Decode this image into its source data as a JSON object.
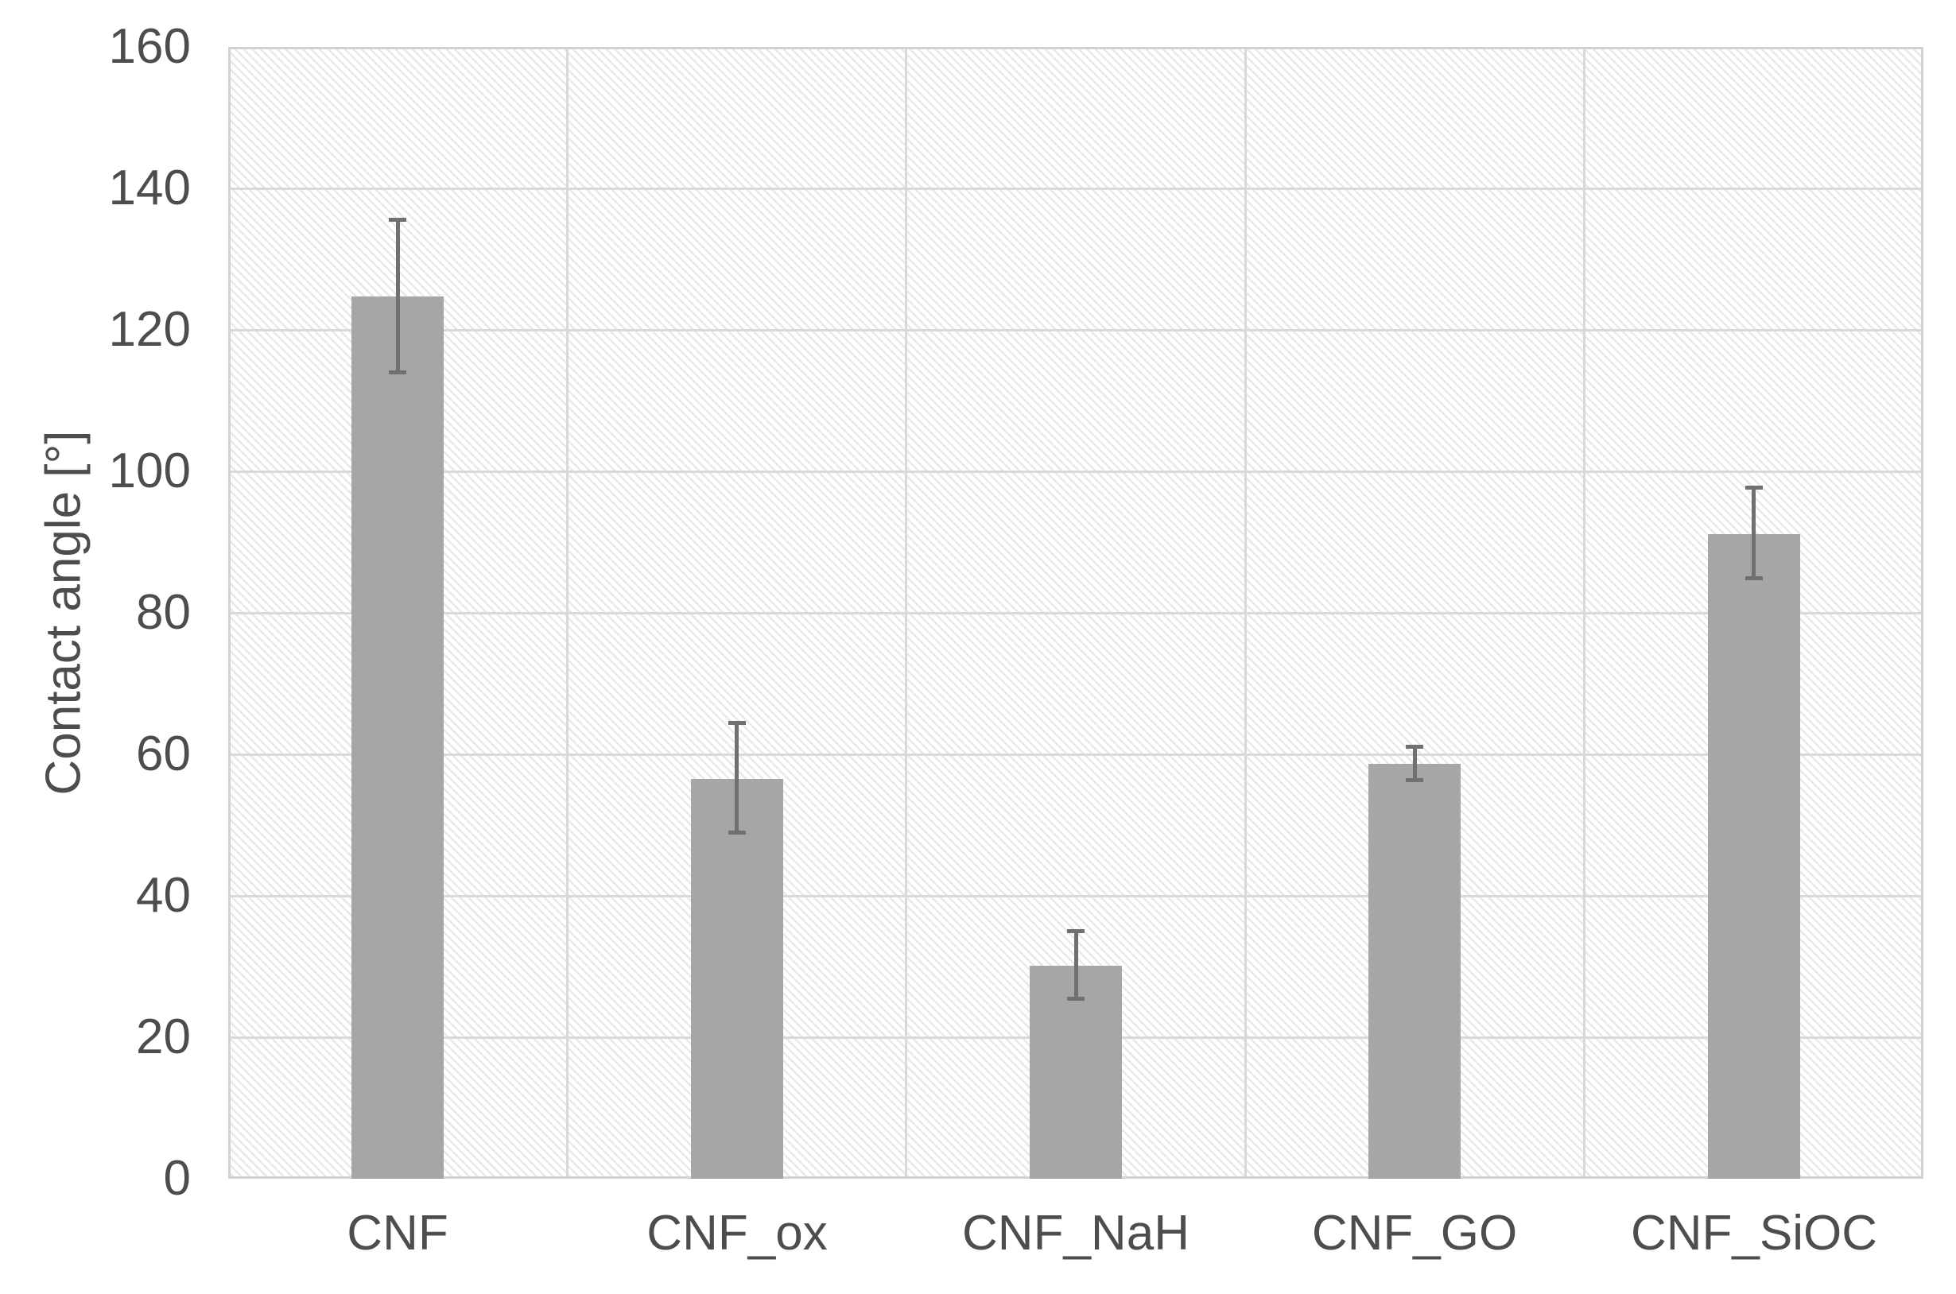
{
  "chart_data": {
    "type": "bar",
    "title": "",
    "xlabel": "",
    "ylabel": "Contact angle [°]",
    "categories": [
      "CNF",
      "CNF_ox",
      "CNF_NaH",
      "CNF_GO",
      "CNF_SiOC"
    ],
    "values": [
      124.7,
      56.5,
      30.1,
      58.7,
      91.1
    ],
    "error_plus": [
      10.9,
      7.9,
      4.9,
      2.4,
      6.6
    ],
    "error_minus": [
      10.7,
      7.6,
      4.7,
      2.3,
      6.2
    ],
    "ylim": [
      0,
      160
    ],
    "ytick_step": 20,
    "yticks": [
      0,
      20,
      40,
      60,
      80,
      100,
      120,
      140,
      160
    ],
    "grid": true,
    "legend": false,
    "background_pattern": "diagonal-hatch",
    "colors": {
      "bar_fill": "#a6a6a6",
      "error_bar": "#707070",
      "gridline": "#d9d9d9",
      "hatch_line": "#e9e9e9",
      "text": "#4d4d4d"
    }
  }
}
